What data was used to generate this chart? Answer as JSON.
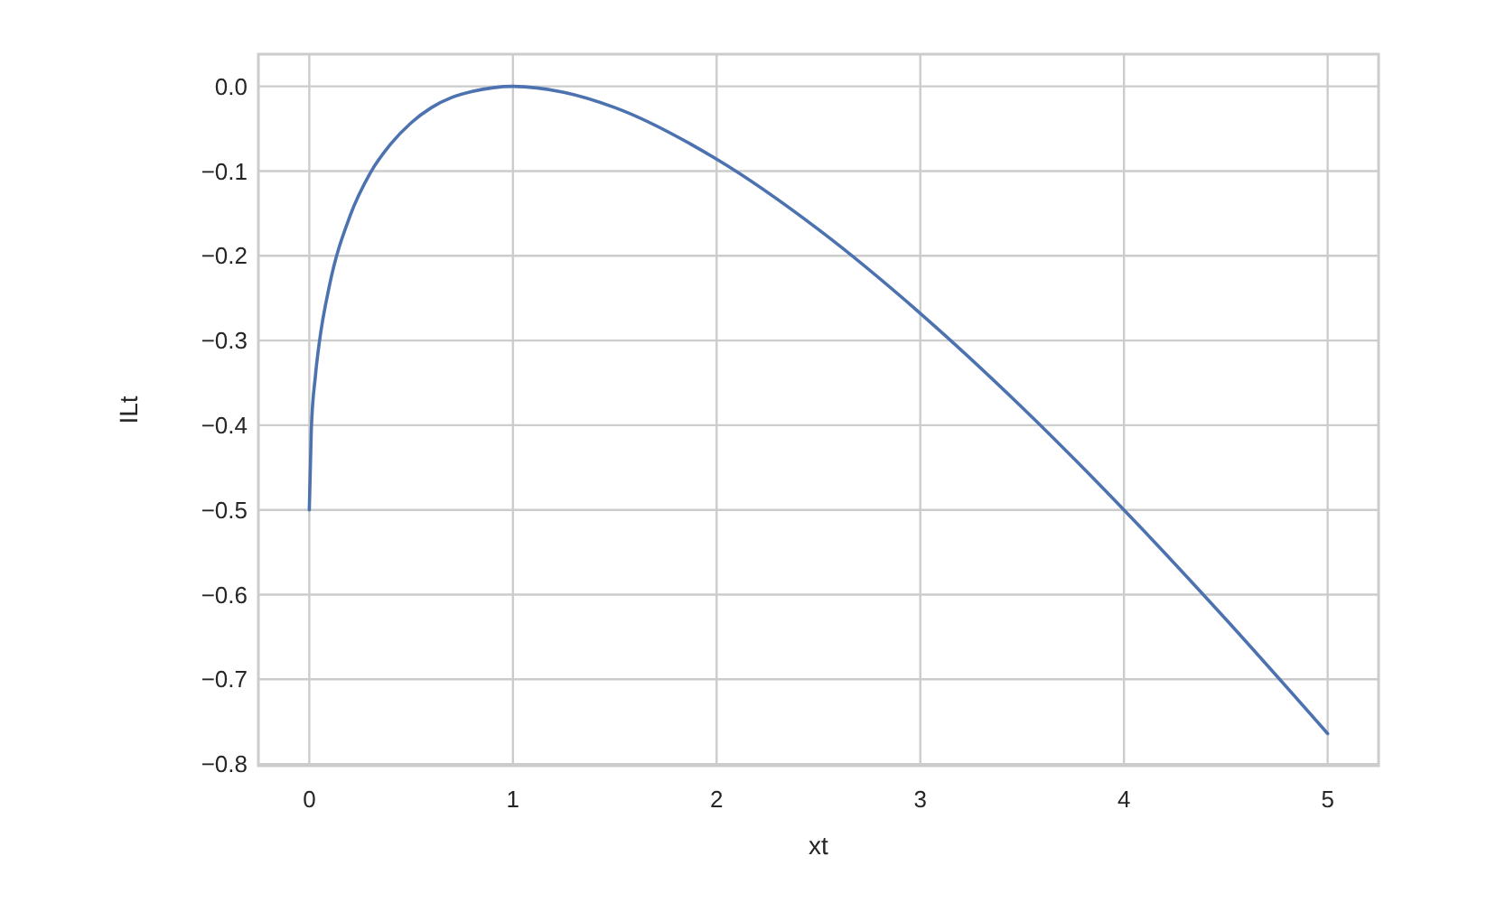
{
  "chart_data": {
    "type": "line",
    "xlabel": "xt",
    "ylabel": "ILt",
    "x": [
      0,
      0.01,
      0.03,
      0.05,
      0.1,
      0.2,
      0.3,
      0.4,
      0.5,
      0.6,
      0.7,
      0.8,
      1,
      1.25,
      1.5,
      2,
      2.5,
      3,
      3.5,
      4,
      4.5,
      5
    ],
    "series": [
      {
        "color": "#4c72b0",
        "values": [
          -0.5,
          -0.405,
          -0.342,
          -0.301,
          -0.234,
          -0.153,
          -0.102,
          -0.068,
          -0.043,
          -0.025,
          -0.013,
          -0.006,
          0,
          -0.007,
          -0.025,
          -0.086,
          -0.169,
          -0.268,
          -0.379,
          -0.5,
          -0.629,
          -0.764
        ]
      }
    ],
    "xlim": [
      -0.25,
      5.25
    ],
    "ylim": [
      -0.802,
      0.038
    ],
    "xticks": [
      0,
      1,
      2,
      3,
      4,
      5
    ],
    "yticks": [
      {
        "value": 0,
        "label": "0.0"
      },
      {
        "value": -0.1,
        "label": "−0.1"
      },
      {
        "value": -0.2,
        "label": "−0.2"
      },
      {
        "value": -0.3,
        "label": "−0.3"
      },
      {
        "value": -0.4,
        "label": "−0.4"
      },
      {
        "value": -0.5,
        "label": "−0.5"
      },
      {
        "value": -0.6,
        "label": "−0.6"
      },
      {
        "value": -0.7,
        "label": "−0.7"
      },
      {
        "value": -0.8,
        "label": "−0.8"
      }
    ],
    "grid": true
  }
}
